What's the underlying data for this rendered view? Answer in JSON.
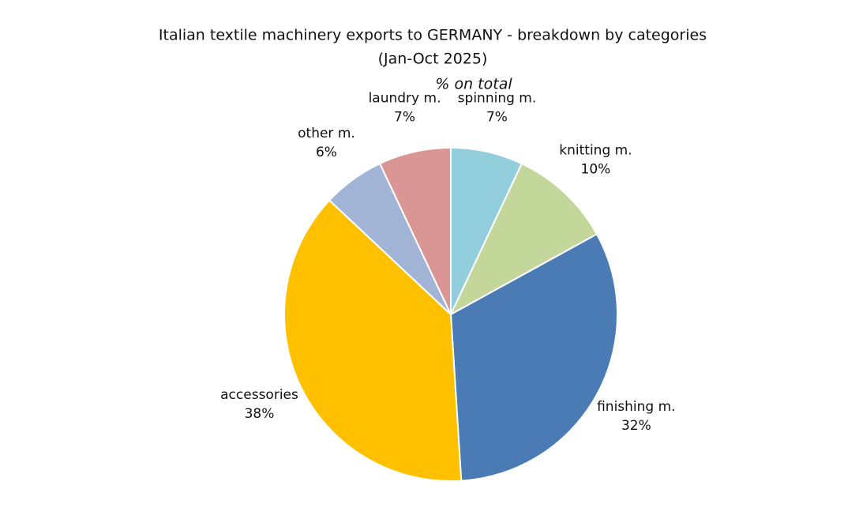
{
  "chart_data": {
    "type": "pie",
    "title": [
      "Italian textile machinery exports to GERMANY - breakdown by categories",
      "(Jan-Oct 2025)"
    ],
    "subtitle": "% on total",
    "categories": [
      "spinning m.",
      "knitting m.",
      "finishing m.",
      "accessories",
      "other m.",
      "laundry m."
    ],
    "values": [
      7,
      10,
      32,
      38,
      6,
      7
    ],
    "value_labels": [
      "7%",
      "10%",
      "32%",
      "38%",
      "6%",
      "7%"
    ],
    "colors": [
      "#92cddc",
      "#c4d79b",
      "#4a7bb5",
      "#ffc000",
      "#a2b4d6",
      "#d99694"
    ]
  }
}
